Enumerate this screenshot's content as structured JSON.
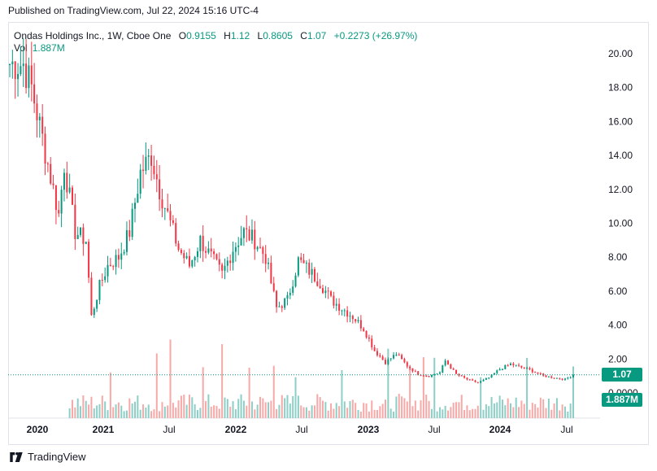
{
  "header": {
    "published": "Published on TradingView.com, Jul 22, 2024 15:16 UTC-4"
  },
  "legend": {
    "symbol": "Ondas Holdings Inc., 1W, Cboe One",
    "open_label": "O",
    "open": "0.9155",
    "high_label": "H",
    "high": "1.12",
    "low_label": "L",
    "low": "0.8605",
    "close_label": "C",
    "close": "1.07",
    "change": "+0.2273 (+26.97%)",
    "vol_label": "Vol",
    "vol_value": "1.887M"
  },
  "price_tag": "1.07",
  "volume_tag": "1.887M",
  "footer": {
    "brand": "TradingView"
  },
  "colors": {
    "up": "#089981",
    "down": "#f23645",
    "up_vol": "#8dcfc6",
    "down_vol": "#f7a9a7"
  },
  "chart_data": {
    "type": "candlestick",
    "y_ticks": [
      "20.00",
      "18.00",
      "16.00",
      "14.00",
      "12.00",
      "10.00",
      "8.00",
      "6.00",
      "4.00",
      "2.00",
      "0.0000"
    ],
    "ylim": [
      0,
      21
    ],
    "x_ticks": [
      {
        "label": "2020",
        "bold": true
      },
      {
        "label": "2021",
        "bold": true
      },
      {
        "label": "Jul",
        "bold": false
      },
      {
        "label": "2022",
        "bold": true
      },
      {
        "label": "Jul",
        "bold": false
      },
      {
        "label": "2023",
        "bold": true
      },
      {
        "label": "Jul",
        "bold": false
      },
      {
        "label": "2024",
        "bold": true
      },
      {
        "label": "Jul",
        "bold": false
      }
    ],
    "last_close": 1.07,
    "ohlc_anchors": [
      [
        0,
        19.4
      ],
      [
        5,
        19.4
      ],
      [
        8,
        18.0
      ],
      [
        12,
        15.0
      ],
      [
        16,
        12.0
      ],
      [
        18,
        10.5
      ],
      [
        20,
        13.5
      ],
      [
        24,
        9.5
      ],
      [
        28,
        9.0
      ],
      [
        30,
        4.5
      ],
      [
        33,
        6.3
      ],
      [
        36,
        7.5
      ],
      [
        40,
        8.0
      ],
      [
        44,
        9.5
      ],
      [
        48,
        13.0
      ],
      [
        52,
        14.0
      ],
      [
        55,
        12.0
      ],
      [
        58,
        10.5
      ],
      [
        62,
        8.5
      ],
      [
        66,
        7.5
      ],
      [
        70,
        9.0
      ],
      [
        74,
        8.0
      ],
      [
        78,
        7.0
      ],
      [
        82,
        8.5
      ],
      [
        86,
        9.5
      ],
      [
        90,
        9.0
      ],
      [
        94,
        8.0
      ],
      [
        98,
        5.0
      ],
      [
        102,
        5.5
      ],
      [
        106,
        7.8
      ],
      [
        110,
        7.2
      ],
      [
        114,
        6.5
      ],
      [
        118,
        5.5
      ],
      [
        122,
        5.0
      ],
      [
        126,
        4.5
      ],
      [
        130,
        3.8
      ],
      [
        134,
        2.5
      ],
      [
        138,
        1.8
      ],
      [
        142,
        2.3
      ],
      [
        146,
        1.6
      ],
      [
        150,
        1.1
      ],
      [
        154,
        1.0
      ],
      [
        158,
        1.2
      ],
      [
        160,
        1.9
      ],
      [
        164,
        1.1
      ],
      [
        168,
        0.8
      ],
      [
        172,
        0.6
      ],
      [
        176,
        0.9
      ],
      [
        180,
        1.4
      ],
      [
        184,
        1.7
      ],
      [
        188,
        1.5
      ],
      [
        192,
        1.3
      ],
      [
        196,
        1.0
      ],
      [
        200,
        0.9
      ],
      [
        204,
        0.8
      ],
      [
        207,
        1.07
      ]
    ]
  }
}
